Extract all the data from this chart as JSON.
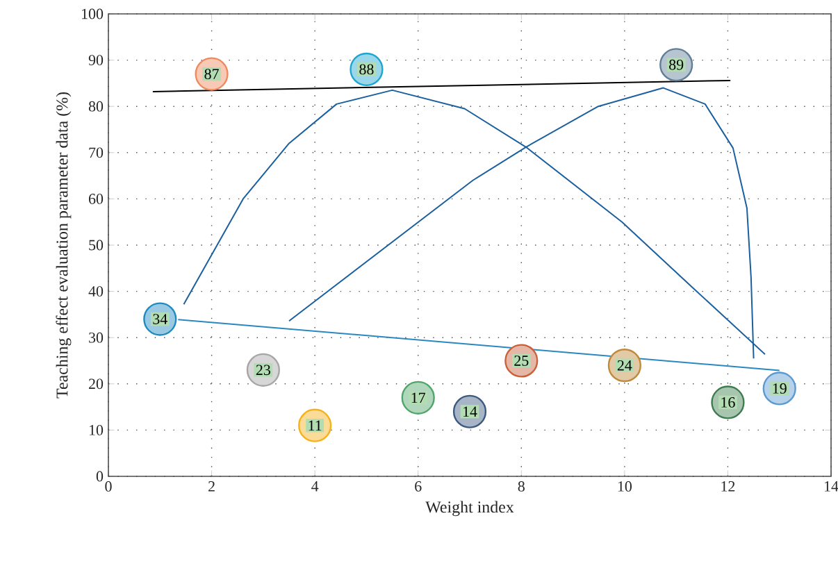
{
  "chart_data": {
    "type": "scatter",
    "xlabel": "Weight index",
    "ylabel": "Teaching effect evaluation parameter data (%)",
    "xlim": [
      0,
      14
    ],
    "xticks": [
      0,
      2,
      4,
      6,
      8,
      10,
      12,
      14
    ],
    "ylim": [
      0,
      100
    ],
    "yticks": [
      0,
      10,
      20,
      30,
      40,
      50,
      60,
      70,
      80,
      90,
      100
    ],
    "grid": true,
    "series": [
      {
        "type": "line",
        "marker": "none",
        "color": "#000000",
        "x": [
          0.86,
          12.05
        ],
        "values": [
          83.2,
          85.6
        ]
      },
      {
        "type": "line",
        "marker": "none",
        "color": "#1a5f9e",
        "x": [
          1.46,
          2.61,
          3.5,
          4.42,
          5.5,
          6.9,
          8.09,
          9.95,
          11.3,
          12.72
        ],
        "values": [
          37.2,
          60,
          72,
          80.5,
          83.5,
          79.5,
          71.2,
          55,
          41,
          26.4
        ]
      },
      {
        "type": "line",
        "marker": "none",
        "color": "#1a5f9e",
        "x": [
          3.5,
          7.06,
          8.09,
          9.49,
          10.75,
          11.56,
          12.1,
          12.37,
          12.45,
          12.5
        ],
        "values": [
          33.6,
          64,
          71.2,
          80,
          84,
          80.5,
          71,
          58,
          43,
          25.5
        ]
      },
      {
        "type": "line",
        "marker": "none",
        "color": "#2a88c0",
        "x": [
          1.35,
          13
        ],
        "values": [
          33.9,
          22.9
        ]
      },
      {
        "marker": "circle",
        "x": [
          1,
          2,
          3,
          4,
          5,
          6,
          7,
          8,
          10,
          11,
          12,
          13
        ],
        "values": [
          34,
          87,
          23,
          11,
          88,
          17,
          14,
          25,
          24,
          89,
          16,
          19
        ],
        "value_labels": [
          "34",
          "87",
          "23",
          "11",
          "88",
          "17",
          "14",
          "25",
          "24",
          "89",
          "16",
          "19"
        ],
        "colors": [
          "#1f8ac0",
          "#f08a5d",
          "#a6a6a6",
          "#f5b21b",
          "#1ea6d0",
          "#4fa56a",
          "#3c5a80",
          "#c8603a",
          "#c08a3a",
          "#5f7f98",
          "#3d7d4f",
          "#5a9ad0"
        ]
      }
    ]
  }
}
